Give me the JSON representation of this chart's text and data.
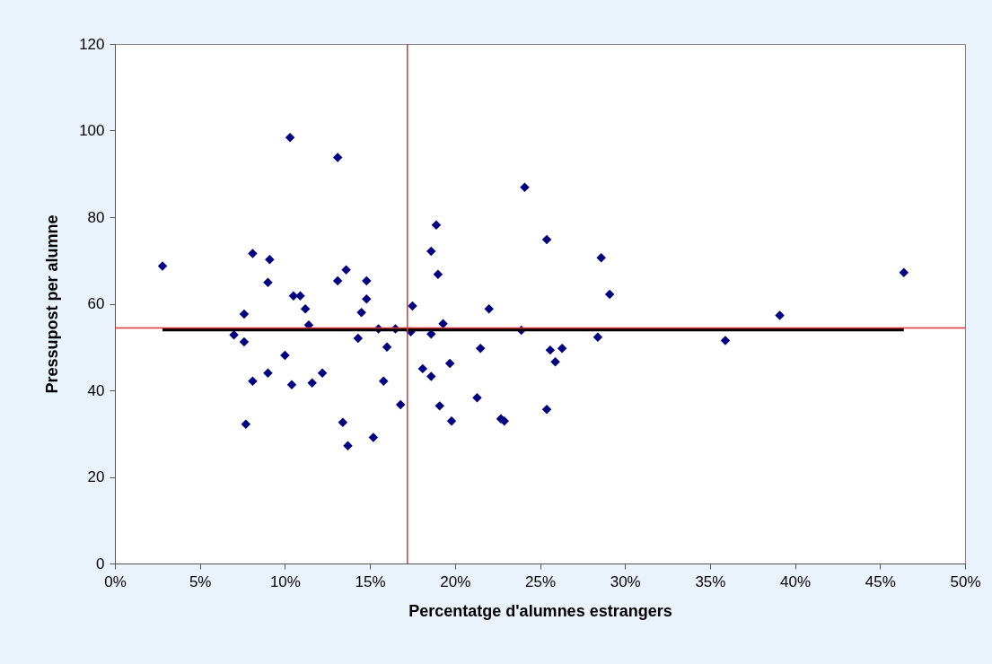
{
  "chart_data": {
    "type": "scatter",
    "xlabel": "Percentatge d'alumnes estrangers",
    "ylabel": "Pressupost per alumne",
    "xlim": [
      0,
      50
    ],
    "xticks": [
      {
        "value": 0,
        "label": "0%"
      },
      {
        "value": 5,
        "label": "5%"
      },
      {
        "value": 10,
        "label": "10%"
      },
      {
        "value": 15,
        "label": "15%"
      },
      {
        "value": 20,
        "label": "20%"
      },
      {
        "value": 25,
        "label": "25%"
      },
      {
        "value": 30,
        "label": "30%"
      },
      {
        "value": 35,
        "label": "35%"
      },
      {
        "value": 40,
        "label": "40%"
      },
      {
        "value": 45,
        "label": "45%"
      },
      {
        "value": 50,
        "label": "50%"
      }
    ],
    "ylim": [
      0,
      120
    ],
    "yticks": [
      0,
      20,
      40,
      60,
      80,
      100,
      120
    ],
    "grid": false,
    "marker": "diamond",
    "series": [
      {
        "color": "#000080",
        "x": [
          10.3,
          13.1,
          2.8,
          8.1,
          9.1,
          9.0,
          13.6,
          13.1,
          14.8,
          10.5,
          10.9,
          14.8,
          11.2,
          14.5,
          7.6,
          11.4,
          17.5,
          15.5,
          16.5,
          17.4,
          7.0,
          7.6,
          14.3,
          16.0,
          10.0,
          9.0,
          12.2,
          8.1,
          10.4,
          11.6,
          15.8,
          16.8,
          7.7,
          13.4,
          15.2,
          13.7,
          18.9,
          18.6,
          19.0,
          19.3,
          18.6,
          22.0,
          24.1,
          25.4,
          28.6,
          29.1,
          23.9,
          28.4,
          21.5,
          25.6,
          26.3,
          25.9,
          18.1,
          19.7,
          18.6,
          19.1,
          21.3,
          19.8,
          22.7,
          22.9,
          25.4,
          35.9,
          39.1,
          46.4
        ],
        "values": [
          98.4,
          93.8,
          68.7,
          71.6,
          70.2,
          64.9,
          67.8,
          65.3,
          65.3,
          61.8,
          61.8,
          61.1,
          58.8,
          58.0,
          57.6,
          55.1,
          59.5,
          54.2,
          54.2,
          53.5,
          52.8,
          51.2,
          52.0,
          50.0,
          48.1,
          44.0,
          44.0,
          42.1,
          41.3,
          41.7,
          42.1,
          36.7,
          32.2,
          32.6,
          29.1,
          27.2,
          78.2,
          72.1,
          66.8,
          55.4,
          53.0,
          58.8,
          86.9,
          74.8,
          70.6,
          62.2,
          53.9,
          52.3,
          49.7,
          49.3,
          49.7,
          46.6,
          45.0,
          46.2,
          43.2,
          36.4,
          38.3,
          32.9,
          33.4,
          32.9,
          35.6,
          51.5,
          57.3,
          67.2
        ]
      },
      {
        "type": "line",
        "color": "#000000",
        "marker": "none",
        "x": [
          2.8,
          46.4
        ],
        "values": [
          54.0,
          54.0
        ]
      }
    ],
    "ref_lines": [
      {
        "axis": "x",
        "value": 17.2,
        "color": "#e0303a"
      },
      {
        "axis": "y",
        "value": 54.4,
        "color": "#e0303a"
      }
    ]
  }
}
